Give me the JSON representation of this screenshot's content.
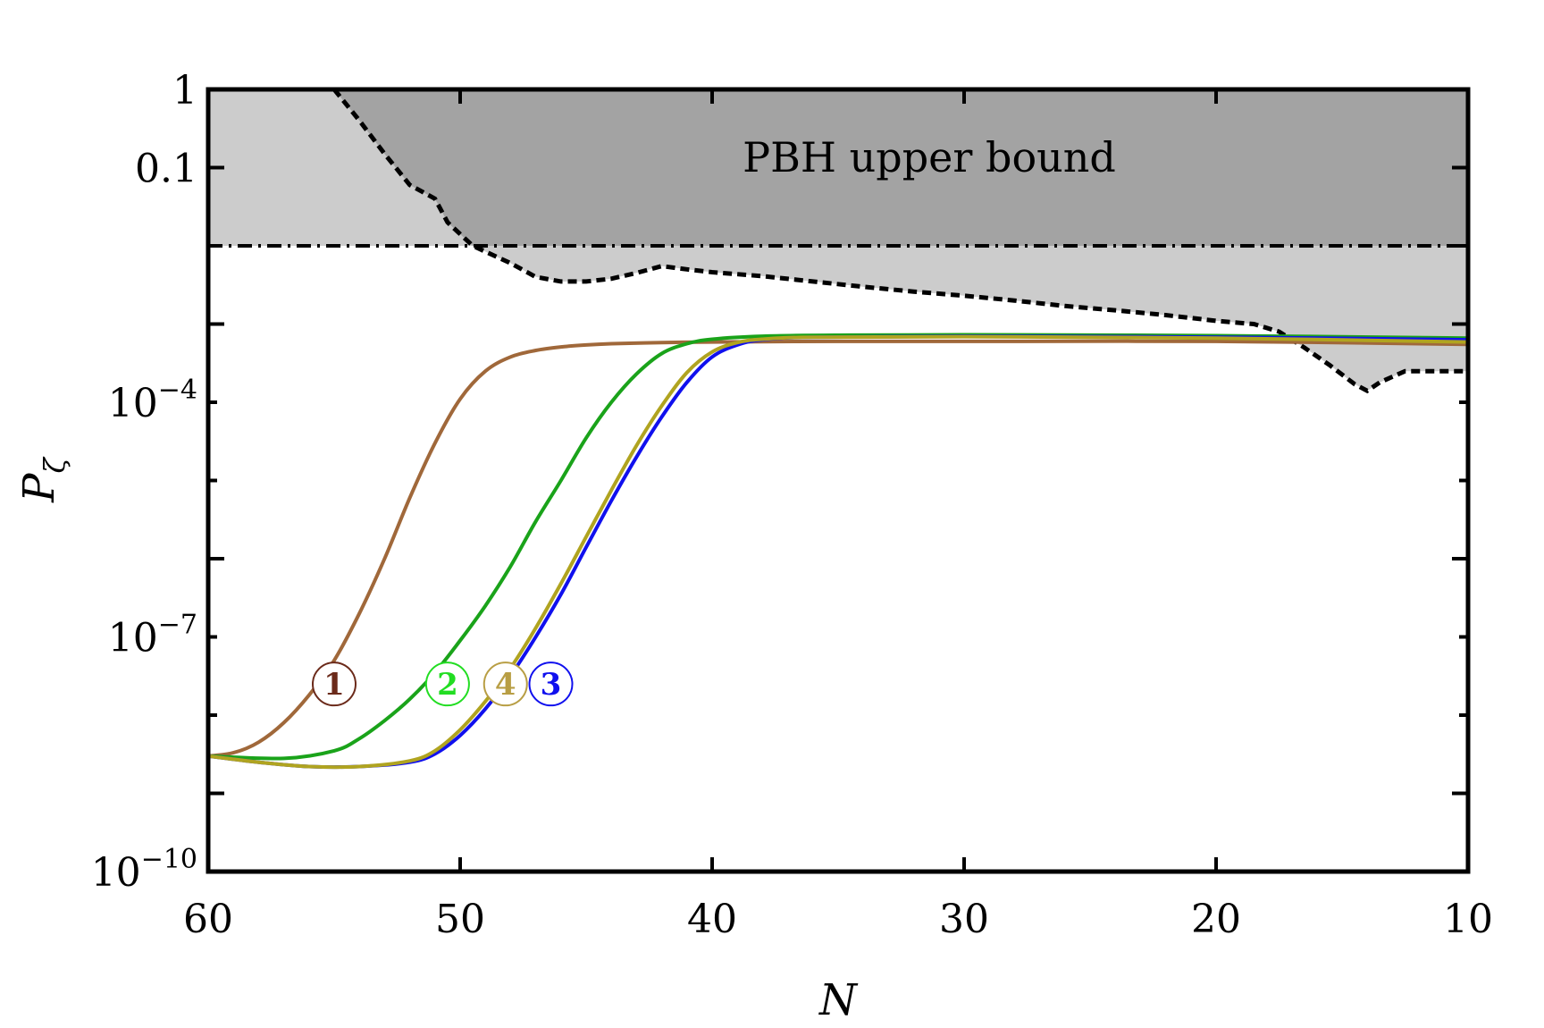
{
  "chart_data": {
    "type": "line",
    "xlabel": "N",
    "ylabel": "P",
    "ylabel_subscript": "ζ",
    "xlim": [
      60,
      10
    ],
    "x_reversed": true,
    "ylog": true,
    "ylim": [
      1e-10,
      1
    ],
    "xticks": [
      60,
      50,
      40,
      30,
      20,
      10
    ],
    "yticks": [
      {
        "value": 1,
        "base": "1",
        "exp": ""
      },
      {
        "value": 0.1,
        "base": "0.1",
        "exp": ""
      },
      {
        "value": 0.0001,
        "base": "10",
        "exp": "−4"
      },
      {
        "value": 1e-07,
        "base": "10",
        "exp": "−7"
      },
      {
        "value": 1e-10,
        "base": "10",
        "exp": "−10"
      }
    ],
    "annotation": "PBH upper bound",
    "pbh_bound_constant": 0.01,
    "pbh_bound_dashed": {
      "x": [
        55,
        54,
        53,
        52,
        51,
        50.5,
        49.5,
        48,
        47,
        46,
        45,
        44,
        43,
        42,
        41,
        40,
        38,
        36,
        34,
        32,
        30,
        28,
        26,
        24,
        22,
        20,
        18.5,
        17.5,
        16.5,
        15.5,
        14.5,
        14,
        13.5,
        12.5,
        11,
        10
      ],
      "y": [
        1,
        0.4,
        0.15,
        0.06,
        0.04,
        0.02,
        0.01,
        0.006,
        0.004,
        0.0035,
        0.0035,
        0.0038,
        0.0045,
        0.0055,
        0.005,
        0.0046,
        0.0041,
        0.0035,
        0.003,
        0.0026,
        0.0023,
        0.002,
        0.0017,
        0.0015,
        0.0013,
        0.0011,
        0.001,
        0.0008,
        0.0005,
        0.0003,
        0.00017,
        0.00014,
        0.00018,
        0.00025,
        0.00025,
        0.00025
      ]
    },
    "series": [
      {
        "label": "1",
        "color": "#a0683a",
        "marker_color": "#6b2a1a",
        "x": [
          60,
          59,
          58,
          57,
          56,
          55,
          54,
          53,
          52,
          51,
          50,
          49,
          48,
          47,
          46,
          45,
          44,
          42,
          40,
          35,
          30,
          20,
          10
        ],
        "y": [
          3e-09,
          3.3e-09,
          4.5e-09,
          8e-09,
          1.8e-08,
          5e-08,
          2e-07,
          1e-06,
          6e-06,
          3e-05,
          0.00011,
          0.00025,
          0.00038,
          0.00046,
          0.00051,
          0.00054,
          0.00056,
          0.00058,
          0.00059,
          0.0006,
          0.0006,
          0.0006,
          0.00055
        ]
      },
      {
        "label": "2",
        "color": "#1aa31a",
        "marker_color": "#22dd22",
        "x": [
          60,
          57,
          55,
          54,
          53,
          52,
          51,
          50,
          49,
          48,
          47,
          46,
          45,
          44,
          43,
          42,
          41,
          40,
          38,
          35,
          30,
          20,
          10
        ],
        "y": [
          3e-09,
          2.8e-09,
          3.5e-09,
          5e-09,
          8.5e-09,
          1.6e-08,
          3.5e-08,
          9e-08,
          2.5e-07,
          8e-07,
          3e-06,
          1e-05,
          3.5e-05,
          0.0001,
          0.00023,
          0.00042,
          0.00056,
          0.00064,
          0.0007,
          0.00072,
          0.00073,
          0.00071,
          0.00066
        ]
      },
      {
        "label": "3",
        "color": "#1010ee",
        "marker_color": "#1010ee",
        "x": [
          60,
          58,
          56,
          54,
          52,
          51,
          50,
          49,
          48,
          47,
          46,
          45,
          44,
          43,
          42,
          41,
          40,
          39,
          38,
          36,
          30,
          20,
          10
        ],
        "y": [
          3e-09,
          2.5e-09,
          2.2e-09,
          2.2e-09,
          2.5e-09,
          3.2e-09,
          5.5e-09,
          1.2e-08,
          3.2e-08,
          1e-07,
          3.5e-07,
          1.4e-06,
          5.5e-06,
          2e-05,
          6.5e-05,
          0.00018,
          0.00038,
          0.00054,
          0.00063,
          0.00068,
          0.0007,
          0.00068,
          0.00063
        ]
      },
      {
        "label": "4",
        "color": "#b0a420",
        "marker_color": "#b89e44",
        "x": [
          60,
          58,
          56,
          54,
          52,
          51,
          50,
          49,
          48,
          47,
          46,
          45,
          44,
          43,
          42,
          41,
          40,
          39,
          38,
          36,
          30,
          20,
          10
        ],
        "y": [
          3e-09,
          2.5e-09,
          2.2e-09,
          2.2e-09,
          2.6e-09,
          3.5e-09,
          6.5e-09,
          1.5e-08,
          4e-08,
          1.3e-07,
          4.8e-07,
          1.9e-06,
          7.5e-06,
          2.8e-05,
          9e-05,
          0.00024,
          0.00044,
          0.00058,
          0.00064,
          0.00068,
          0.00069,
          0.00066,
          0.00059
        ]
      }
    ],
    "markers": [
      {
        "text": "1",
        "x": 55,
        "y": 2.5e-08
      },
      {
        "text": "2",
        "x": 50.5,
        "y": 2.5e-08
      },
      {
        "text": "4",
        "x": 48.2,
        "y": 2.5e-08
      },
      {
        "text": "3",
        "x": 46.4,
        "y": 2.5e-08
      }
    ]
  }
}
